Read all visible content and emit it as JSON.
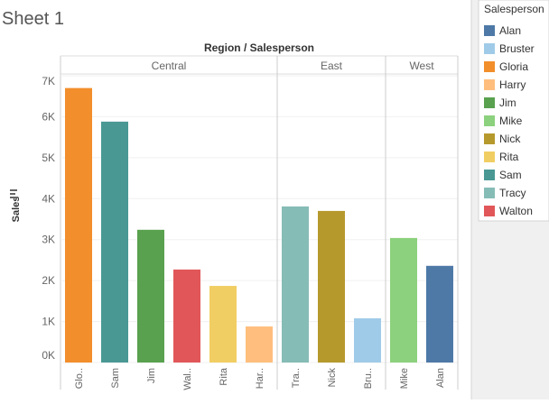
{
  "chart_data": {
    "type": "bar",
    "title": "Sheet 1",
    "header": "Region / Salesperson",
    "y_label": "Sales",
    "categories": [
      "Glo..",
      "Sam",
      "Jim",
      "Wal..",
      "Rita",
      "Har..",
      "Tra..",
      "Nick",
      "Bru..",
      "Mike",
      "Alan"
    ],
    "regions": [
      "Central",
      "Central",
      "Central",
      "Central",
      "Central",
      "Central",
      "East",
      "East",
      "East",
      "West",
      "West"
    ],
    "values": [
      6700,
      5880,
      3240,
      2270,
      1870,
      880,
      3810,
      3700,
      1080,
      3040,
      2360
    ],
    "colors": [
      "#f28e2b",
      "#499894",
      "#59a14f",
      "#e15759",
      "#f1ce63",
      "#ffbe7d",
      "#86bcb6",
      "#b6992d",
      "#a0cbe8",
      "#8cd17d",
      "#4e79a7"
    ],
    "ylim": [
      0,
      7000
    ],
    "yticks": [
      {
        "value": 0,
        "label": "0K"
      },
      {
        "value": 1000,
        "label": "1K"
      },
      {
        "value": 2000,
        "label": "2K"
      },
      {
        "value": 3000,
        "label": "3K"
      },
      {
        "value": 4000,
        "label": "4K"
      },
      {
        "value": 5000,
        "label": "5K"
      },
      {
        "value": 6000,
        "label": "6K"
      },
      {
        "value": 7000,
        "label": "7K"
      }
    ],
    "grid": true,
    "legend": {
      "title": "Salesperson",
      "items": [
        {
          "name": "Alan",
          "color": "#4e79a7"
        },
        {
          "name": "Bruster",
          "color": "#a0cbe8"
        },
        {
          "name": "Gloria",
          "color": "#f28e2b"
        },
        {
          "name": "Harry",
          "color": "#ffbe7d"
        },
        {
          "name": "Jim",
          "color": "#59a14f"
        },
        {
          "name": "Mike",
          "color": "#8cd17d"
        },
        {
          "name": "Nick",
          "color": "#b6992d"
        },
        {
          "name": "Rita",
          "color": "#f1ce63"
        },
        {
          "name": "Sam",
          "color": "#499894"
        },
        {
          "name": "Tracy",
          "color": "#86bcb6"
        },
        {
          "name": "Walton",
          "color": "#e15759"
        }
      ]
    }
  }
}
